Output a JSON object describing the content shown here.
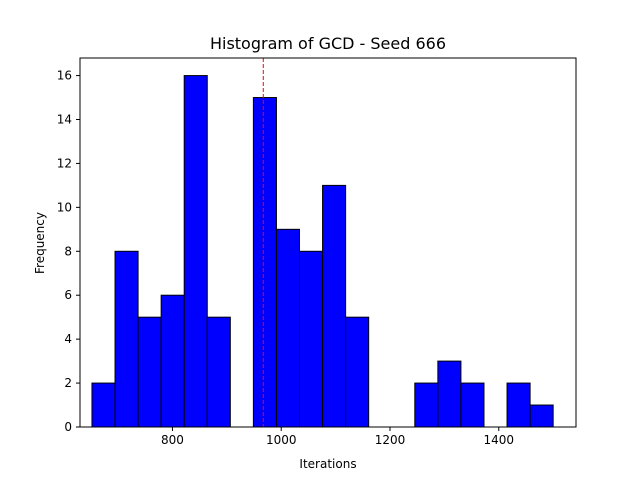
{
  "chart_data": {
    "type": "bar",
    "title": "Histogram of GCD - Seed 666",
    "xlabel": "Iterations",
    "ylabel": "Frequency",
    "xlim": [
      630,
      1542
    ],
    "ylim": [
      0,
      16.8
    ],
    "xticks": [
      800,
      1000,
      1200,
      1400
    ],
    "yticks": [
      0,
      2,
      4,
      6,
      8,
      10,
      12,
      14,
      16
    ],
    "bin_edges": [
      652,
      694.4,
      736.8,
      779.2,
      821.6,
      864,
      906.4,
      948.8,
      991.2,
      1033.6,
      1076,
      1118.4,
      1160.8,
      1203.2,
      1245.6,
      1288,
      1330.4,
      1372.8,
      1415.2,
      1457.6,
      1500
    ],
    "counts": [
      2,
      8,
      5,
      6,
      16,
      5,
      0,
      15,
      9,
      8,
      11,
      5,
      0,
      0,
      2,
      3,
      2,
      0,
      2,
      1
    ],
    "bar_color": "#0000ff",
    "edge_color": "#000000",
    "reference_line": {
      "x": 967,
      "color": "#ff0000",
      "style": "dashed"
    },
    "grid": false,
    "legend": "none"
  }
}
